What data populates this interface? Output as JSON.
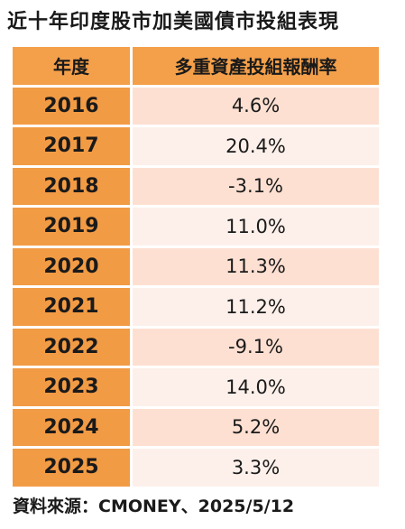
{
  "title": "近十年印度股市加美國債市投組表現",
  "table": {
    "headers": [
      "年度",
      "多重資產投組報酬率"
    ],
    "rows": [
      {
        "year": "2016",
        "return": "4.6%"
      },
      {
        "year": "2017",
        "return": "20.4%"
      },
      {
        "year": "2018",
        "return": "-3.1%"
      },
      {
        "year": "2019",
        "return": "11.0%"
      },
      {
        "year": "2020",
        "return": "11.3%"
      },
      {
        "year": "2021",
        "return": "11.2%"
      },
      {
        "year": "2022",
        "return": "-9.1%"
      },
      {
        "year": "2023",
        "return": "14.0%"
      },
      {
        "year": "2024",
        "return": "5.2%"
      },
      {
        "year": "2025",
        "return": "3.3%"
      }
    ]
  },
  "source": "資料來源：CMONEY、2025/5/12",
  "colors": {
    "header_bg": "#f4a04b",
    "year_bg": "#f29b45",
    "row_odd_bg": "#fde0d2",
    "row_even_bg": "#fdf0ea"
  }
}
